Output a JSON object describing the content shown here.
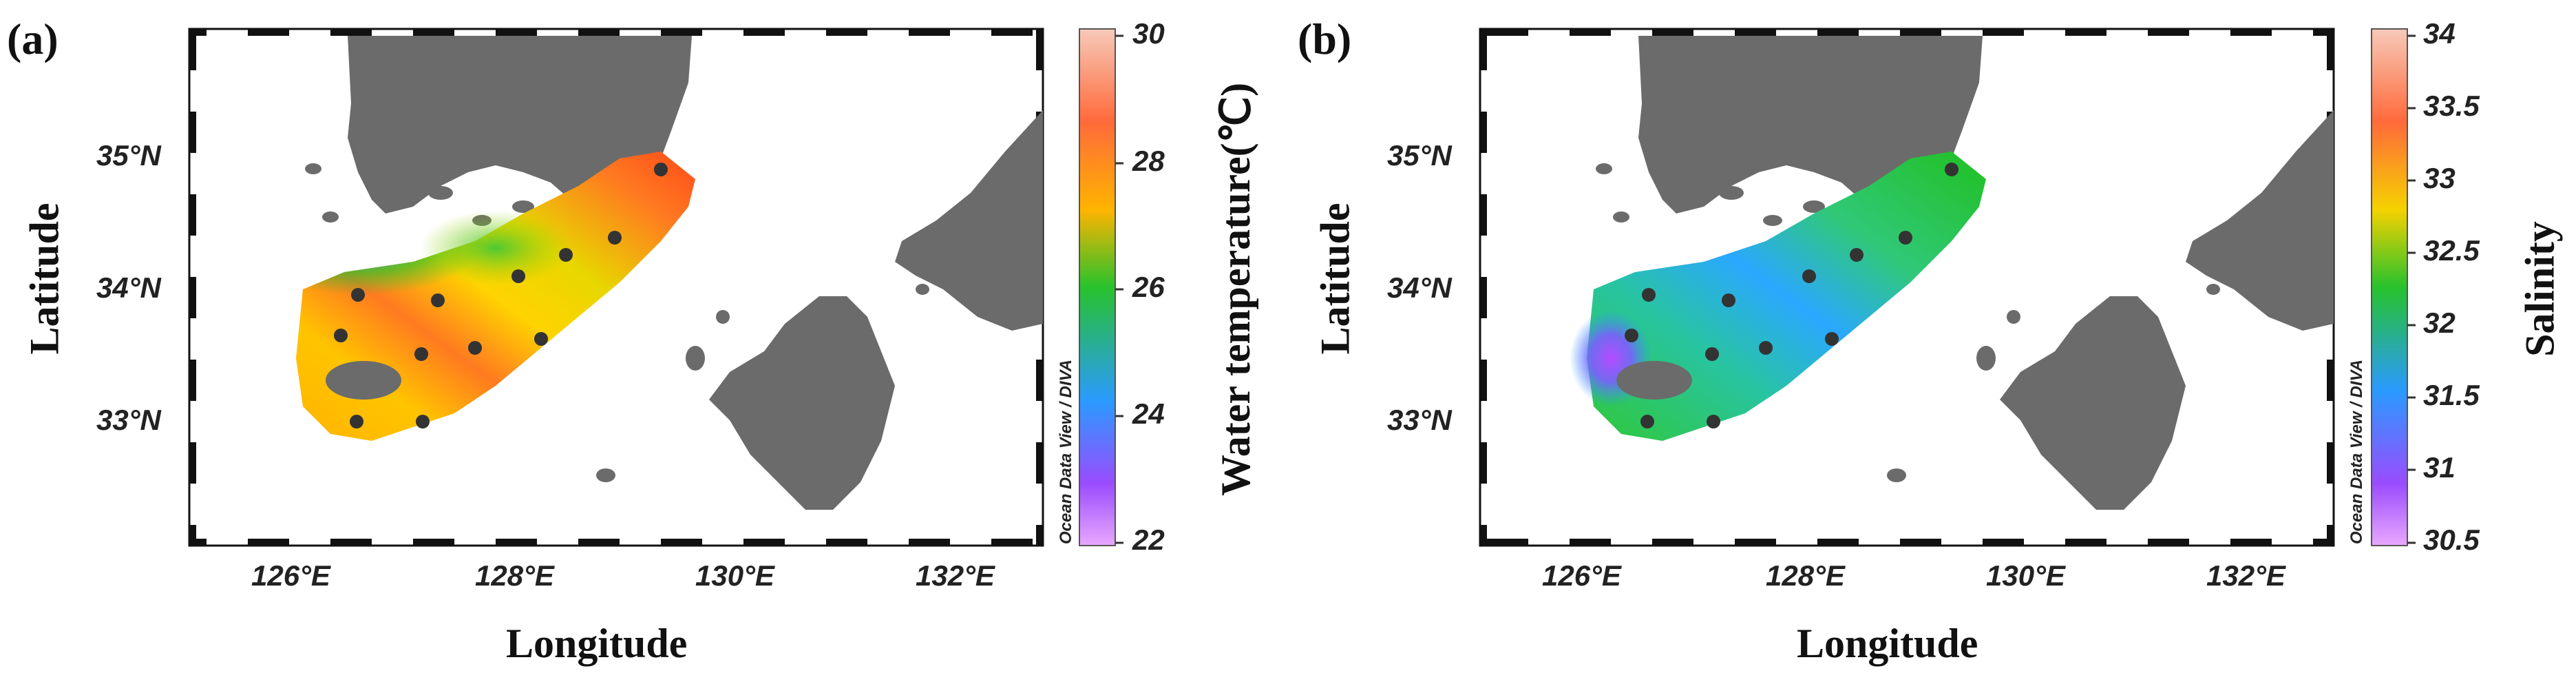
{
  "panels": [
    {
      "label": "(a)",
      "xlabel": "Longitude",
      "ylabel": "Latitude",
      "x_ticks": [
        "126°E",
        "128°E",
        "130°E",
        "132°E"
      ],
      "y_ticks": [
        "35°N",
        "34°N",
        "33°N"
      ],
      "watermark": "Ocean Data View / DIVA",
      "colorbar_title": "Water temperature(℃)",
      "colorbar_ticks": [
        "30",
        "28",
        "26",
        "24",
        "22"
      ],
      "colorbar_colors": [
        "#f7c9b9",
        "#ff6a3a",
        "#f5d200",
        "#27c22c",
        "#2a9aff",
        "#c44cff",
        "#e9a8ff"
      ]
    },
    {
      "label": "(b)",
      "xlabel": "Longitude",
      "ylabel": "Latitude",
      "x_ticks": [
        "126°E",
        "128°E",
        "130°E",
        "132°E"
      ],
      "y_ticks": [
        "35°N",
        "34°N",
        "33°N"
      ],
      "watermark": "Ocean Data View / DIVA",
      "colorbar_title": "Salinity",
      "colorbar_ticks": [
        "34",
        "33.5",
        "33",
        "32.5",
        "32",
        "31.5",
        "31",
        "30.5"
      ],
      "colorbar_colors": [
        "#f7c9b9",
        "#ff6a3a",
        "#f5d200",
        "#27c22c",
        "#2a9aff",
        "#c44cff",
        "#e9a8ff"
      ]
    }
  ],
  "colors": {
    "land": "#6b6b6b",
    "station": "#333333",
    "frame": "#111111"
  }
}
